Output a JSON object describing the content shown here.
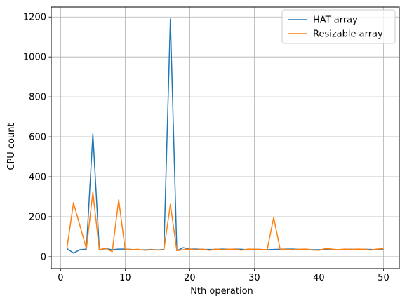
{
  "chart_data": {
    "type": "line",
    "xlabel": "Nth operation",
    "ylabel": "CPU count",
    "xlim": [
      -1.45,
      52.45
    ],
    "ylim": [
      -60,
      1250
    ],
    "xticks": [
      0,
      10,
      20,
      30,
      40,
      50
    ],
    "yticks": [
      0,
      200,
      400,
      600,
      800,
      1000,
      1200
    ],
    "grid": true,
    "legend": "top-right",
    "x": [
      1,
      2,
      3,
      4,
      5,
      6,
      7,
      8,
      9,
      10,
      11,
      12,
      13,
      14,
      15,
      16,
      17,
      18,
      19,
      20,
      21,
      22,
      23,
      24,
      25,
      26,
      27,
      28,
      29,
      30,
      31,
      32,
      33,
      34,
      35,
      36,
      37,
      38,
      39,
      40,
      41,
      42,
      43,
      44,
      45,
      46,
      47,
      48,
      49,
      50
    ],
    "series": [
      {
        "name": "HAT array",
        "color": "#1f77b4",
        "values": [
          40,
          18,
          35,
          38,
          615,
          35,
          40,
          35,
          38,
          38,
          36,
          35,
          34,
          36,
          34,
          36,
          1190,
          30,
          45,
          38,
          38,
          36,
          36,
          36,
          38,
          37,
          38,
          37,
          35,
          37,
          36,
          35,
          36,
          37,
          38,
          38,
          36,
          37,
          35,
          35,
          37,
          36,
          35,
          36,
          37,
          36,
          37,
          36,
          35,
          35
        ]
      },
      {
        "name": "Resizable array",
        "color": "#ff7f0e",
        "values": [
          45,
          270,
          155,
          40,
          323,
          35,
          42,
          25,
          285,
          38,
          35,
          37,
          32,
          35,
          33,
          35,
          262,
          30,
          35,
          38,
          34,
          38,
          32,
          38,
          35,
          37,
          38,
          32,
          38,
          37,
          36,
          35,
          197,
          37,
          36,
          35,
          37,
          38,
          33,
          32,
          40,
          38,
          35,
          38,
          36,
          38,
          37,
          33,
          38,
          40
        ]
      }
    ]
  }
}
